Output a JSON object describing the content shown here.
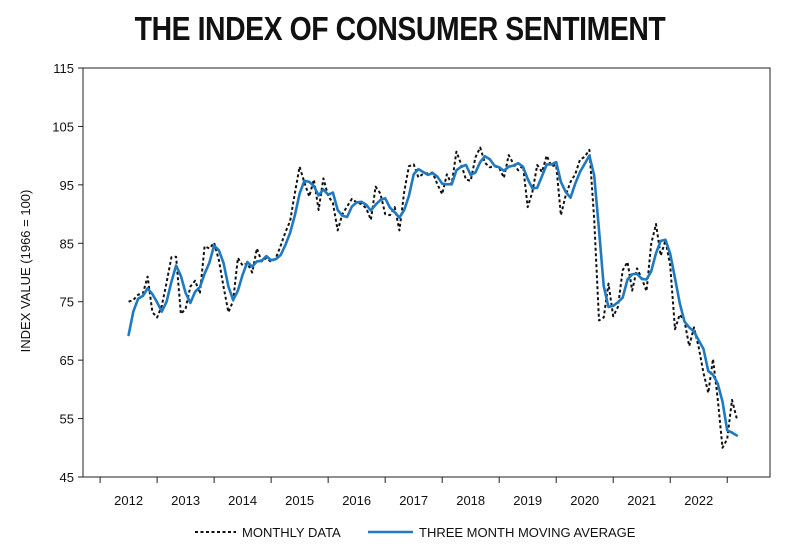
{
  "chart_data": {
    "type": "line",
    "title": "THE INDEX OF CONSUMER SENTIMENT",
    "xlabel": "",
    "ylabel": "INDEX VALUE (1966 = 100)",
    "xlim": [
      2011.2,
      2023.25
    ],
    "ylim": [
      45,
      115
    ],
    "yticks": [
      45,
      55,
      65,
      75,
      85,
      95,
      105,
      115
    ],
    "xticks": [
      2012,
      2013,
      2014,
      2015,
      2016,
      2017,
      2018,
      2019,
      2020,
      2021,
      2022
    ],
    "grid": false,
    "legend_position": "bottom",
    "series": [
      {
        "name": "MONTHLY DATA",
        "style": "dotted",
        "color": "#111111",
        "x": [
          2012.0,
          2012.083,
          2012.167,
          2012.25,
          2012.333,
          2012.417,
          2012.5,
          2012.583,
          2012.667,
          2012.75,
          2012.833,
          2012.917,
          2013.0,
          2013.083,
          2013.167,
          2013.25,
          2013.333,
          2013.417,
          2013.5,
          2013.583,
          2013.667,
          2013.75,
          2013.833,
          2013.917,
          2014.0,
          2014.083,
          2014.167,
          2014.25,
          2014.333,
          2014.417,
          2014.5,
          2014.583,
          2014.667,
          2014.75,
          2014.833,
          2014.917,
          2015.0,
          2015.083,
          2015.167,
          2015.25,
          2015.333,
          2015.417,
          2015.5,
          2015.583,
          2015.667,
          2015.75,
          2015.833,
          2015.917,
          2016.0,
          2016.083,
          2016.167,
          2016.25,
          2016.333,
          2016.417,
          2016.5,
          2016.583,
          2016.667,
          2016.75,
          2016.833,
          2016.917,
          2017.0,
          2017.083,
          2017.167,
          2017.25,
          2017.333,
          2017.417,
          2017.5,
          2017.583,
          2017.667,
          2017.75,
          2017.833,
          2017.917,
          2018.0,
          2018.083,
          2018.167,
          2018.25,
          2018.333,
          2018.417,
          2018.5,
          2018.583,
          2018.667,
          2018.75,
          2018.833,
          2018.917,
          2019.0,
          2019.083,
          2019.167,
          2019.25,
          2019.333,
          2019.417,
          2019.5,
          2019.583,
          2019.667,
          2019.75,
          2019.833,
          2019.917,
          2020.0,
          2020.083,
          2020.167,
          2020.25,
          2020.333,
          2020.417,
          2020.5,
          2020.583,
          2020.667,
          2020.75,
          2020.833,
          2020.917,
          2021.0,
          2021.083,
          2021.167,
          2021.25,
          2021.333,
          2021.417,
          2021.5,
          2021.583,
          2021.667,
          2021.75,
          2021.833,
          2021.917,
          2022.0,
          2022.083,
          2022.167,
          2022.25,
          2022.333,
          2022.417,
          2022.5,
          2022.583,
          2022.667
        ],
        "values": [
          75.0,
          75.3,
          76.2,
          76.4,
          79.3,
          73.2,
          72.3,
          74.3,
          78.3,
          82.6,
          82.7,
          72.9,
          73.8,
          77.6,
          78.6,
          76.4,
          84.5,
          84.1,
          85.1,
          82.1,
          77.5,
          73.2,
          75.1,
          82.5,
          81.2,
          81.6,
          80.0,
          84.1,
          81.9,
          82.5,
          81.8,
          82.5,
          84.6,
          86.9,
          88.8,
          93.6,
          98.1,
          95.4,
          93.0,
          95.9,
          90.7,
          96.1,
          93.1,
          91.9,
          87.2,
          90.0,
          91.3,
          92.6,
          92.0,
          91.7,
          91.0,
          89.0,
          94.7,
          93.5,
          90.0,
          89.8,
          91.2,
          87.2,
          93.8,
          98.2,
          98.5,
          96.3,
          96.9,
          97.0,
          97.1,
          95.1,
          93.4,
          96.8,
          95.1,
          100.7,
          98.5,
          95.9,
          95.7,
          99.7,
          101.4,
          98.8,
          98.0,
          98.2,
          97.9,
          96.2,
          100.1,
          98.6,
          97.5,
          98.3,
          91.2,
          93.8,
          98.4,
          97.2,
          100.0,
          98.2,
          98.4,
          89.8,
          93.2,
          95.5,
          96.8,
          99.3,
          99.8,
          101.0,
          89.1,
          71.8,
          72.3,
          78.1,
          72.5,
          74.1,
          80.4,
          81.8,
          76.9,
          80.7,
          79.0,
          76.8,
          84.9,
          88.3,
          82.9,
          85.5,
          81.2,
          70.3,
          72.8,
          71.7,
          67.4,
          70.6,
          67.2,
          62.8,
          59.4,
          65.2,
          58.4,
          50.0,
          51.5,
          58.2,
          55.0
        ]
      },
      {
        "name": "THREE MONTH MOVING AVERAGE",
        "style": "solid",
        "color": "#1f7ac2",
        "x": [
          2012.0,
          2012.083,
          2012.167,
          2012.25,
          2012.333,
          2012.417,
          2012.5,
          2012.583,
          2012.667,
          2012.75,
          2012.833,
          2012.917,
          2013.0,
          2013.083,
          2013.167,
          2013.25,
          2013.333,
          2013.417,
          2013.5,
          2013.583,
          2013.667,
          2013.75,
          2013.833,
          2013.917,
          2014.0,
          2014.083,
          2014.167,
          2014.25,
          2014.333,
          2014.417,
          2014.5,
          2014.583,
          2014.667,
          2014.75,
          2014.833,
          2014.917,
          2015.0,
          2015.083,
          2015.167,
          2015.25,
          2015.333,
          2015.417,
          2015.5,
          2015.583,
          2015.667,
          2015.75,
          2015.833,
          2015.917,
          2016.0,
          2016.083,
          2016.167,
          2016.25,
          2016.333,
          2016.417,
          2016.5,
          2016.583,
          2016.667,
          2016.75,
          2016.833,
          2016.917,
          2017.0,
          2017.083,
          2017.167,
          2017.25,
          2017.333,
          2017.417,
          2017.5,
          2017.583,
          2017.667,
          2017.75,
          2017.833,
          2017.917,
          2018.0,
          2018.083,
          2018.167,
          2018.25,
          2018.333,
          2018.417,
          2018.5,
          2018.583,
          2018.667,
          2018.75,
          2018.833,
          2018.917,
          2019.0,
          2019.083,
          2019.167,
          2019.25,
          2019.333,
          2019.417,
          2019.5,
          2019.583,
          2019.667,
          2019.75,
          2019.833,
          2019.917,
          2020.0,
          2020.083,
          2020.167,
          2020.25,
          2020.333,
          2020.417,
          2020.5,
          2020.583,
          2020.667,
          2020.75,
          2020.833,
          2020.917,
          2021.0,
          2021.083,
          2021.167,
          2021.25,
          2021.333,
          2021.417,
          2021.5,
          2021.583,
          2021.667,
          2021.75,
          2021.833,
          2021.917,
          2022.0,
          2022.083,
          2022.167,
          2022.25,
          2022.333,
          2022.417,
          2022.5,
          2022.583,
          2022.667
        ],
        "values": [
          69.3,
          73.3,
          75.5,
          76.0,
          77.3,
          76.3,
          74.9,
          73.3,
          75.0,
          78.4,
          81.2,
          79.4,
          76.5,
          74.8,
          76.7,
          77.5,
          79.8,
          81.7,
          84.6,
          83.8,
          81.6,
          77.6,
          75.3,
          76.9,
          79.6,
          81.8,
          81.0,
          81.9,
          82.0,
          82.8,
          82.1,
          82.3,
          83.0,
          84.7,
          86.8,
          89.8,
          93.5,
          95.7,
          95.5,
          94.8,
          93.2,
          94.2,
          93.3,
          93.7,
          90.7,
          89.7,
          89.5,
          91.3,
          92.0,
          92.1,
          91.6,
          90.6,
          91.6,
          92.4,
          92.7,
          91.1,
          90.3,
          89.4,
          90.7,
          93.1,
          96.8,
          97.7,
          97.2,
          96.7,
          97.0,
          96.4,
          95.2,
          95.1,
          95.1,
          97.5,
          98.1,
          98.4,
          96.7,
          97.1,
          98.9,
          99.9,
          99.4,
          98.3,
          98.0,
          97.4,
          98.1,
          98.3,
          98.7,
          98.1,
          96.0,
          94.4,
          94.5,
          96.5,
          98.5,
          98.5,
          98.9,
          95.5,
          93.8,
          92.8,
          95.2,
          97.2,
          98.6,
          100.0,
          96.6,
          87.3,
          77.7,
          74.1,
          74.3,
          74.9,
          75.7,
          78.8,
          79.7,
          79.8,
          78.9,
          78.8,
          80.2,
          83.3,
          85.4,
          85.6,
          83.2,
          79.0,
          74.8,
          71.6,
          70.6,
          69.9,
          68.4,
          66.9,
          63.1,
          62.5,
          61.0,
          57.9,
          53.0,
          52.6,
          52.1
        ]
      }
    ]
  }
}
